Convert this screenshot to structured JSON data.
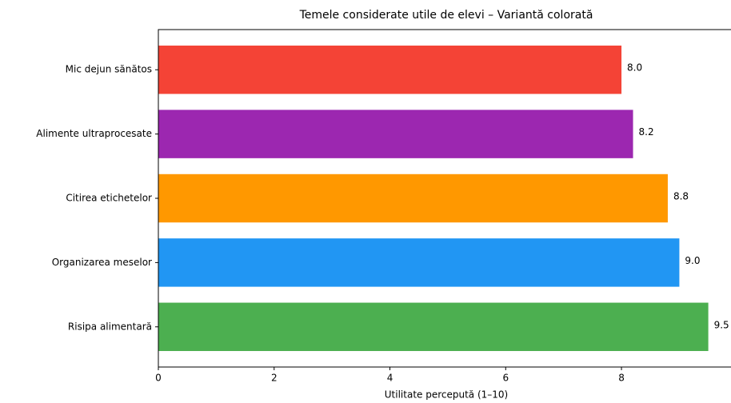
{
  "chart_data": {
    "type": "barh",
    "title": "Temele considerate utile de elevi – Variantă colorată",
    "xlabel": "Utilitate percepută (1–10)",
    "categories": [
      "Mic dejun sănătos",
      "Alimente ultraprocesate",
      "Citirea etichetelor",
      "Organizarea meselor",
      "Risipa alimentară"
    ],
    "values": [
      8.0,
      8.2,
      8.8,
      9.0,
      9.5
    ],
    "value_labels": [
      "8.0",
      "8.2",
      "8.8",
      "9.0",
      "9.5"
    ],
    "colors": [
      "#f44336",
      "#9c27b0",
      "#ff9800",
      "#2196f3",
      "#4caf50"
    ],
    "xlim": [
      0,
      9.975
    ],
    "xticks": [
      0,
      2,
      4,
      6,
      8
    ],
    "grid": false
  }
}
